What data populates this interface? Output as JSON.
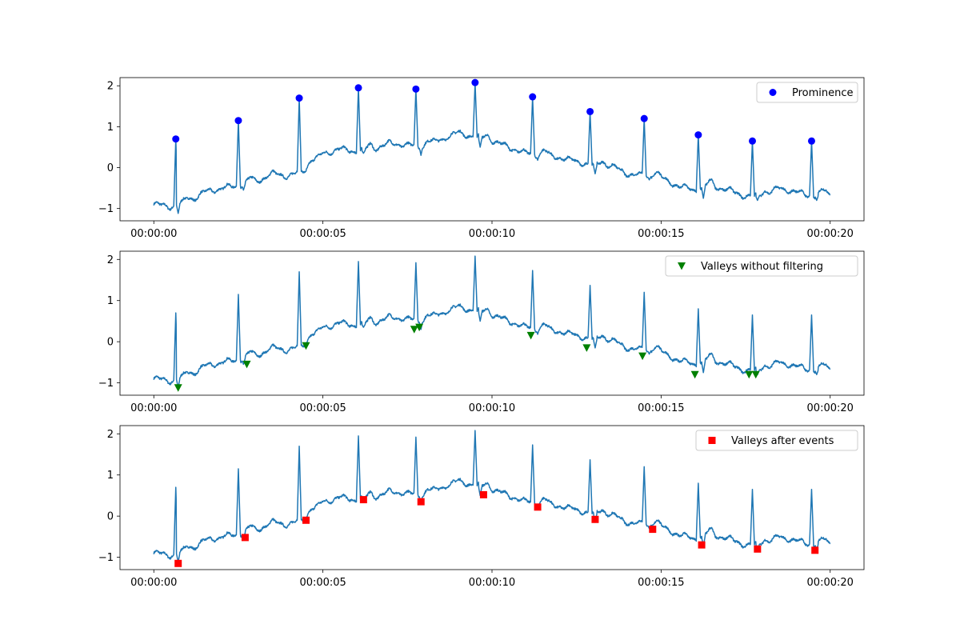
{
  "figure": {
    "colors": {
      "signal": "#1f77b4",
      "prominence": "#0000ff",
      "valleys_raw": "#008000",
      "valleys_events": "#ff0000",
      "axes": "#000000"
    }
  },
  "chart_data": [
    {
      "type": "line",
      "title": "",
      "xlabel": "",
      "ylabel": "",
      "x_unit": "seconds",
      "xlim": [
        -1,
        21
      ],
      "ylim": [
        -1.3,
        2.2
      ],
      "x_ticks": [
        0,
        5,
        10,
        15,
        20
      ],
      "x_tick_labels": [
        "00:00:00",
        "00:00:05",
        "00:00:10",
        "00:00:15",
        "00:00:20"
      ],
      "y_ticks": [
        -1,
        0,
        1,
        2
      ],
      "y_tick_labels": [
        "−1",
        "0",
        "1",
        "2"
      ],
      "grid": false,
      "legend_position": "top-right",
      "series": [
        {
          "kind": "line",
          "color": "#1f77b4",
          "x": [
            0.0,
            0.5,
            1.0,
            1.5,
            2.0,
            2.5,
            3.0,
            3.5,
            4.0,
            4.5,
            5.0,
            5.5,
            6.0,
            6.5,
            7.0,
            7.5,
            8.0,
            8.5,
            9.0,
            9.5,
            10.0,
            10.5,
            11.0,
            11.5,
            12.0,
            12.5,
            13.0,
            13.5,
            14.0,
            14.5,
            15.0,
            15.5,
            16.0,
            16.5,
            17.0,
            17.5,
            18.0,
            18.5,
            19.0,
            19.5,
            20.0
          ],
          "y": [
            -0.9,
            -0.95,
            -0.85,
            -0.6,
            -0.5,
            -0.45,
            -0.35,
            -0.15,
            -0.2,
            -0.05,
            0.35,
            0.45,
            0.4,
            0.45,
            0.6,
            0.55,
            0.5,
            0.7,
            0.85,
            0.75,
            0.65,
            0.5,
            0.35,
            0.3,
            0.25,
            0.15,
            0.05,
            0.05,
            -0.15,
            -0.2,
            -0.25,
            -0.45,
            -0.55,
            -0.45,
            -0.55,
            -0.7,
            -0.7,
            -0.5,
            -0.6,
            -0.7,
            -0.65
          ],
          "peaks": [
            {
              "x": 0.65,
              "y": 0.7
            },
            {
              "x": 2.5,
              "y": 1.15
            },
            {
              "x": 4.3,
              "y": 1.7
            },
            {
              "x": 6.05,
              "y": 1.95
            },
            {
              "x": 7.75,
              "y": 1.92
            },
            {
              "x": 9.5,
              "y": 2.08
            },
            {
              "x": 11.2,
              "y": 1.73
            },
            {
              "x": 12.9,
              "y": 1.37
            },
            {
              "x": 14.5,
              "y": 1.2
            },
            {
              "x": 16.1,
              "y": 0.8
            },
            {
              "x": 17.7,
              "y": 0.65
            },
            {
              "x": 19.45,
              "y": 0.65
            }
          ],
          "troughs": [
            {
              "x": 0.72,
              "y": -1.12
            },
            {
              "x": 2.65,
              "y": -0.55
            },
            {
              "x": 4.45,
              "y": -0.1
            },
            {
              "x": 6.2,
              "y": 0.35
            },
            {
              "x": 7.9,
              "y": 0.3
            },
            {
              "x": 9.65,
              "y": 0.5
            },
            {
              "x": 11.35,
              "y": 0.18
            },
            {
              "x": 13.05,
              "y": -0.15
            },
            {
              "x": 14.65,
              "y": -0.3
            },
            {
              "x": 16.25,
              "y": -0.75
            },
            {
              "x": 17.85,
              "y": -0.8
            },
            {
              "x": 19.6,
              "y": -0.8
            }
          ]
        },
        {
          "kind": "scatter",
          "name": "Prominence",
          "marker": "circle",
          "color": "#0000ff",
          "x": [
            0.65,
            2.5,
            4.3,
            6.05,
            7.75,
            9.5,
            11.2,
            12.9,
            14.5,
            16.1,
            17.7,
            19.45
          ],
          "y": [
            0.7,
            1.15,
            1.7,
            1.95,
            1.92,
            2.08,
            1.73,
            1.37,
            1.2,
            0.8,
            0.65,
            0.65
          ]
        }
      ]
    },
    {
      "type": "line",
      "title": "",
      "xlabel": "",
      "ylabel": "",
      "x_unit": "seconds",
      "xlim": [
        -1,
        21
      ],
      "ylim": [
        -1.3,
        2.2
      ],
      "x_ticks": [
        0,
        5,
        10,
        15,
        20
      ],
      "x_tick_labels": [
        "00:00:00",
        "00:00:05",
        "00:00:10",
        "00:00:15",
        "00:00:20"
      ],
      "y_ticks": [
        -1,
        0,
        1,
        2
      ],
      "y_tick_labels": [
        "−1",
        "0",
        "1",
        "2"
      ],
      "grid": false,
      "legend_position": "top-right",
      "series": [
        {
          "kind": "line",
          "color": "#1f77b4",
          "same_signal_as_panel": 0
        },
        {
          "kind": "scatter",
          "name": "Valleys without filtering",
          "marker": "triangle-down",
          "color": "#008000",
          "x": [
            0.72,
            2.75,
            4.5,
            7.7,
            7.85,
            11.15,
            12.8,
            14.45,
            16.0,
            17.6,
            17.8
          ],
          "y": [
            -1.12,
            -0.55,
            -0.1,
            0.3,
            0.35,
            0.15,
            -0.15,
            -0.35,
            -0.8,
            -0.8,
            -0.8
          ]
        }
      ]
    },
    {
      "type": "line",
      "title": "",
      "xlabel": "",
      "ylabel": "",
      "x_unit": "seconds",
      "xlim": [
        -1,
        21
      ],
      "ylim": [
        -1.3,
        2.2
      ],
      "x_ticks": [
        0,
        5,
        10,
        15,
        20
      ],
      "x_tick_labels": [
        "00:00:00",
        "00:00:05",
        "00:00:10",
        "00:00:15",
        "00:00:20"
      ],
      "y_ticks": [
        -1,
        0,
        1,
        2
      ],
      "y_tick_labels": [
        "−1",
        "0",
        "1",
        "2"
      ],
      "grid": false,
      "legend_position": "top-right",
      "series": [
        {
          "kind": "line",
          "color": "#1f77b4",
          "same_signal_as_panel": 0
        },
        {
          "kind": "scatter",
          "name": "Valleys after events",
          "marker": "square",
          "color": "#ff0000",
          "x": [
            0.72,
            2.7,
            4.5,
            6.2,
            7.9,
            9.75,
            11.35,
            13.05,
            14.75,
            16.2,
            17.85,
            19.55
          ],
          "y": [
            -1.15,
            -0.52,
            -0.1,
            0.4,
            0.35,
            0.52,
            0.22,
            -0.08,
            -0.32,
            -0.7,
            -0.8,
            -0.83
          ]
        }
      ]
    }
  ]
}
